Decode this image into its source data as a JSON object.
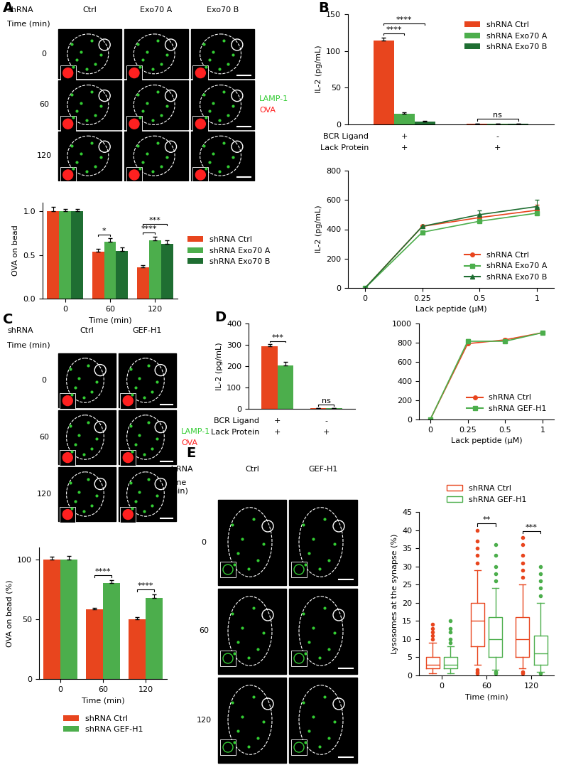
{
  "images": [
    {
      "panel": "A",
      "header": "shRNA",
      "columns": [
        "Ctrl",
        "Exo70 A",
        "Exo70 B"
      ],
      "row_title": "Time (min)",
      "rows": [
        "0",
        "60",
        "120"
      ],
      "channels": [
        {
          "name": "LAMP-1",
          "color": "#33cc33"
        },
        {
          "name": "OVA",
          "color": "#ff2020"
        }
      ]
    },
    {
      "panel": "C",
      "header": "shRNA",
      "columns": [
        "Ctrl",
        "GEF-H1"
      ],
      "row_title": "Time (min)",
      "rows": [
        "0",
        "60",
        "120"
      ],
      "channels": [
        {
          "name": "LAMP-1",
          "color": "#33cc33"
        },
        {
          "name": "OVA",
          "color": "#ff2020"
        }
      ]
    },
    {
      "panel": "E",
      "header": "shRNA",
      "columns": [
        "Ctrl",
        "GEF-H1"
      ],
      "row_title": "Time\n(min)",
      "rows": [
        "0",
        "60",
        "120"
      ],
      "channels": []
    }
  ],
  "chart_data": [
    {
      "type": "bar",
      "ylabel": "OVA on bead",
      "xlabel": "Time (min)",
      "categories": [
        "0",
        "60",
        "120"
      ],
      "series": [
        {
          "name": "shRNA Ctrl",
          "color": "#e8451e",
          "values": [
            1.0,
            0.54,
            0.36
          ],
          "errors": [
            0.05,
            0.03,
            0.02
          ]
        },
        {
          "name": "shRNA Exo70 A",
          "color": "#4cae4c",
          "values": [
            1.0,
            0.65,
            0.67
          ],
          "errors": [
            0.03,
            0.04,
            0.04
          ]
        },
        {
          "name": "shRNA Exo70 B",
          "color": "#1f6e32",
          "values": [
            1.0,
            0.55,
            0.63
          ],
          "errors": [
            0.03,
            0.04,
            0.04
          ]
        }
      ],
      "ylim": [
        0,
        1.1
      ],
      "yticks": [
        0.0,
        0.5,
        1.0
      ],
      "legend": "center left",
      "significance": [
        {
          "at": 1,
          "from": "shRNA Ctrl",
          "to": "shRNA Exo70 A",
          "label": "*"
        },
        {
          "at": 2,
          "from": "shRNA Ctrl",
          "to": "shRNA Exo70 A",
          "label": "****"
        },
        {
          "at": 2,
          "from": "shRNA Ctrl",
          "to": "shRNA Exo70 B",
          "label": "***"
        }
      ]
    },
    {
      "panel": "B",
      "type": "bar",
      "ylabel": "IL-2 (pg/mL)",
      "conditions": {
        "rows": [
          "BCR Ligand",
          "Lack Protein"
        ],
        "cells": [
          [
            "+",
            "-"
          ],
          [
            "+",
            "+"
          ]
        ]
      },
      "series": [
        {
          "name": "shRNA Ctrl",
          "color": "#e8451e",
          "values": [
            114,
            1
          ],
          "errors": [
            4,
            0.3
          ]
        },
        {
          "name": "shRNA Exo70 A",
          "color": "#4cae4c",
          "values": [
            15,
            1
          ],
          "errors": [
            1.5,
            0.3
          ]
        },
        {
          "name": "shRNA Exo70 B",
          "color": "#1f6e32",
          "values": [
            4,
            1
          ],
          "errors": [
            1,
            0.3
          ]
        }
      ],
      "ylim": [
        0,
        150
      ],
      "yticks": [
        0,
        50,
        100,
        150
      ],
      "legend": "upper right",
      "significance": [
        {
          "at": 0,
          "from": "shRNA Ctrl",
          "to": "shRNA Exo70 A",
          "label": "****"
        },
        {
          "at": 0,
          "from": "shRNA Ctrl",
          "to": "shRNA Exo70 B",
          "label": "****"
        },
        {
          "at": 1,
          "from": "shRNA Ctrl",
          "to": "shRNA Exo70 B",
          "label": "ns"
        }
      ]
    },
    {
      "type": "line",
      "ylabel": "IL-2 (pg/mL)",
      "xlabel": "Lack peptide (µM)",
      "categories": [
        "0",
        "0.25",
        "0.5",
        "1"
      ],
      "series": [
        {
          "name": "shRNA Ctrl",
          "color": "#e8451e",
          "marker": "o",
          "values": [
            0,
            420,
            480,
            530
          ],
          "errors": [
            0,
            8,
            20,
            35
          ]
        },
        {
          "name": "shRNA Exo70 A",
          "color": "#4cae4c",
          "marker": "s",
          "values": [
            0,
            380,
            455,
            510
          ],
          "errors": [
            0,
            6,
            15,
            20
          ]
        },
        {
          "name": "shRNA Exo70 B",
          "color": "#1f6e32",
          "marker": "^",
          "values": [
            0,
            420,
            500,
            555
          ],
          "errors": [
            0,
            6,
            30,
            45
          ]
        }
      ],
      "ylim": [
        0,
        800
      ],
      "yticks": [
        0,
        200,
        400,
        600,
        800
      ],
      "legend": "lower right"
    },
    {
      "type": "bar",
      "ylabel": "OVA on bead (%)",
      "xlabel": "Time (min)",
      "categories": [
        "0",
        "60",
        "120"
      ],
      "series": [
        {
          "name": "shRNA Ctrl",
          "color": "#e8451e",
          "values": [
            100,
            58,
            50
          ],
          "errors": [
            2,
            1.5,
            1.5
          ]
        },
        {
          "name": "shRNA GEF-H1",
          "color": "#4cae4c",
          "values": [
            100,
            80,
            68
          ],
          "errors": [
            3,
            2.5,
            2.5
          ]
        }
      ],
      "ylim": [
        0,
        110
      ],
      "yticks": [
        0,
        50,
        100
      ],
      "legend": "lower center",
      "significance": [
        {
          "at": 1,
          "from": "shRNA Ctrl",
          "to": "shRNA GEF-H1",
          "label": "****"
        },
        {
          "at": 2,
          "from": "shRNA Ctrl",
          "to": "shRNA GEF-H1",
          "label": "****"
        }
      ]
    },
    {
      "panel": "D",
      "type": "bar",
      "ylabel": "IL-2 (pg/mL)",
      "conditions": {
        "rows": [
          "BCR Ligand",
          "Lack Protein"
        ],
        "cells": [
          [
            "+",
            "-"
          ],
          [
            "+",
            "+"
          ]
        ]
      },
      "series": [
        {
          "name": "shRNA Ctrl",
          "color": "#e8451e",
          "values": [
            292,
            2
          ],
          "errors": [
            10,
            0.5
          ]
        },
        {
          "name": "shRNA GEF-H1",
          "color": "#4cae4c",
          "values": [
            204,
            2
          ],
          "errors": [
            15,
            0.5
          ]
        }
      ],
      "ylim": [
        0,
        400
      ],
      "yticks": [
        0,
        100,
        200,
        300,
        400
      ],
      "significance": [
        {
          "at": 0,
          "from": "shRNA Ctrl",
          "to": "shRNA GEF-H1",
          "label": "***"
        },
        {
          "at": 1,
          "from": "shRNA Ctrl",
          "to": "shRNA GEF-H1",
          "label": "ns"
        }
      ]
    },
    {
      "type": "line",
      "xlabel": "Lack peptide (µM)",
      "categories": [
        "0",
        "0.25",
        "0.5",
        "1"
      ],
      "series": [
        {
          "name": "shRNA Ctrl",
          "color": "#e8451e",
          "marker": "o",
          "values": [
            0,
            790,
            830,
            905
          ],
          "errors": [
            0,
            30,
            15,
            10
          ]
        },
        {
          "name": "shRNA GEF-H1",
          "color": "#4cae4c",
          "marker": "s",
          "values": [
            0,
            815,
            815,
            905
          ],
          "errors": [
            0,
            20,
            10,
            10
          ]
        }
      ],
      "ylim": [
        0,
        1000
      ],
      "yticks": [
        0,
        200,
        400,
        600,
        800,
        1000
      ],
      "legend": "lower right"
    },
    {
      "type": "box",
      "ylabel": "Lysosomes at the synapse (%)",
      "xlabel": "Time (min)",
      "categories": [
        "0",
        "60",
        "120"
      ],
      "series": [
        {
          "name": "shRNA Ctrl",
          "color": "#e8451e",
          "stats": [
            {
              "whislo": 0.5,
              "q1": 2,
              "med": 3,
              "q3": 5,
              "whishi": 9,
              "fliers": [
                10,
                11,
                12,
                13,
                14
              ]
            },
            {
              "whislo": 3,
              "q1": 8,
              "med": 15,
              "q3": 20,
              "whishi": 29,
              "fliers": [
                0.5,
                1,
                1.5,
                31,
                33,
                35,
                37,
                40
              ]
            },
            {
              "whislo": 2,
              "q1": 5,
              "med": 10,
              "q3": 16,
              "whishi": 25,
              "fliers": [
                0.5,
                1,
                27,
                29,
                31,
                33,
                36,
                38
              ]
            }
          ]
        },
        {
          "name": "shRNA GEF-H1",
          "color": "#4cae4c",
          "stats": [
            {
              "whislo": 0.5,
              "q1": 2,
              "med": 3,
              "q3": 5,
              "whishi": 8,
              "fliers": [
                9,
                10,
                12,
                13,
                15
              ]
            },
            {
              "whislo": 1.5,
              "q1": 5,
              "med": 10,
              "q3": 16,
              "whishi": 24,
              "fliers": [
                0.5,
                1,
                26,
                28,
                30,
                33,
                36
              ]
            },
            {
              "whislo": 1,
              "q1": 3,
              "med": 6,
              "q3": 11,
              "whishi": 20,
              "fliers": [
                0.5,
                22,
                24,
                26,
                28,
                30
              ]
            }
          ]
        }
      ],
      "ylim": [
        0,
        45
      ],
      "yticks": [
        0,
        5,
        10,
        15,
        20,
        25,
        30,
        35,
        40,
        45
      ],
      "legend": "upper center",
      "significance": [
        {
          "at": 1,
          "from": "shRNA Ctrl",
          "to": "shRNA GEF-H1",
          "label": "**"
        },
        {
          "at": 2,
          "from": "shRNA Ctrl",
          "to": "shRNA GEF-H1",
          "label": "***"
        }
      ]
    }
  ]
}
